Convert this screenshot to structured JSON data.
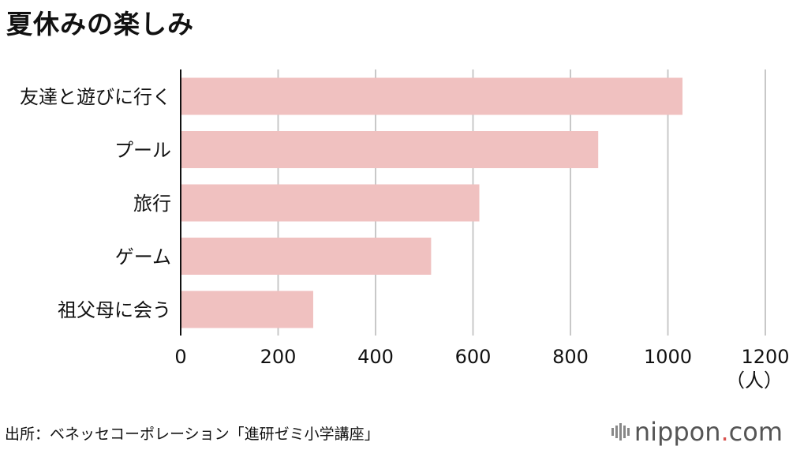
{
  "title": "夏休みの楽しみ",
  "chart_data": {
    "type": "bar",
    "orientation": "horizontal",
    "categories": [
      "友達と遊びに行く",
      "プール",
      "旅行",
      "ゲーム",
      "祖父母に会う"
    ],
    "values": [
      1030,
      857,
      613,
      514,
      272
    ],
    "xlim": [
      0,
      1200
    ],
    "xticks": [
      "0",
      "200",
      "400",
      "600",
      "800",
      "1000",
      "1200"
    ],
    "unit": "（人）",
    "bar_color": "#f0c1c0",
    "grid": true
  },
  "source": "出所：ベネッセコーポレーション「進研ゼミ小学講座」",
  "brand": {
    "name": "nippon",
    "dot": ".",
    "tld": "com"
  }
}
